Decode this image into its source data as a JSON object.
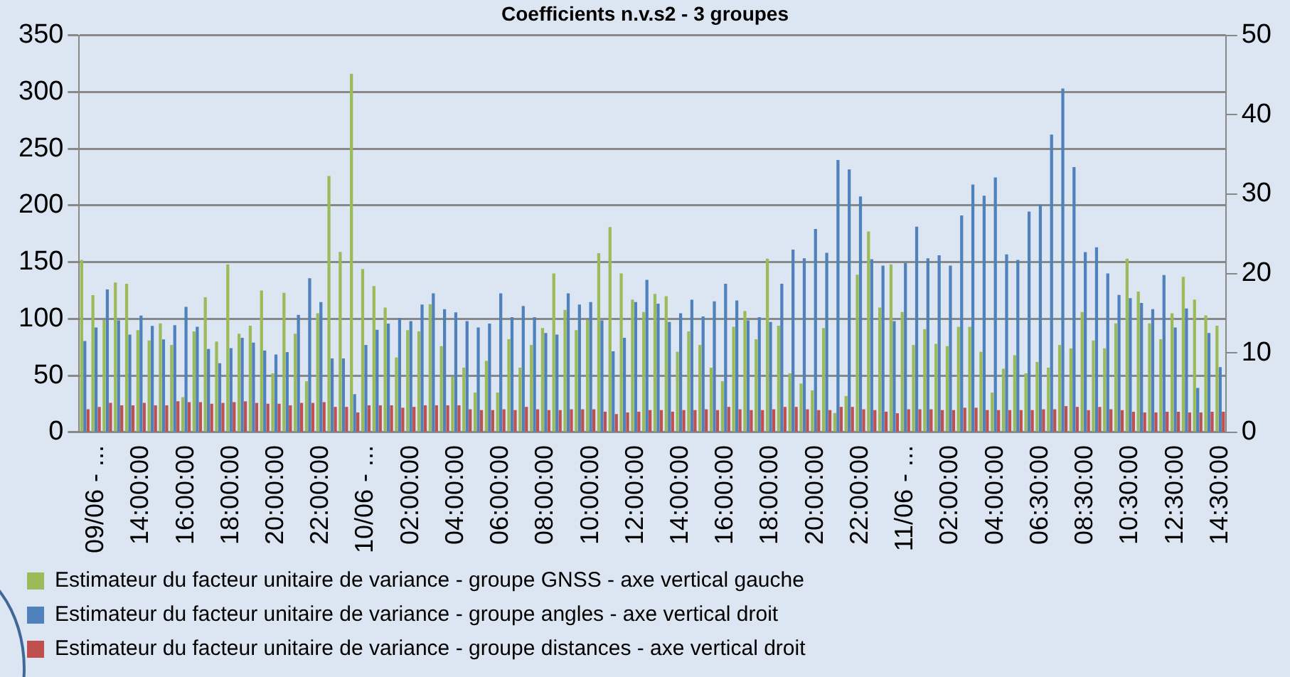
{
  "chart_data": {
    "type": "bar",
    "title": "Coefficients n.v.s2 - 3 groupes",
    "categories": [
      null,
      "09/06 - ...",
      null,
      null,
      null,
      "14:00:00",
      null,
      null,
      null,
      "16:00:00",
      null,
      null,
      null,
      "18:00:00",
      null,
      null,
      null,
      "20:00:00",
      null,
      null,
      null,
      "22:00:00",
      null,
      null,
      null,
      "10/06 - ...",
      null,
      null,
      null,
      "02:00:00",
      null,
      null,
      null,
      "04:00:00",
      null,
      null,
      null,
      "06:00:00",
      null,
      null,
      null,
      "08:00:00",
      null,
      null,
      null,
      "10:00:00",
      null,
      null,
      null,
      "12:00:00",
      null,
      null,
      null,
      "14:00:00",
      null,
      null,
      null,
      "16:00:00",
      null,
      null,
      null,
      "18:00:00",
      null,
      null,
      null,
      "20:00:00",
      null,
      null,
      null,
      "22:00:00",
      null,
      null,
      null,
      "11/06 - ...",
      null,
      null,
      null,
      "02:00:00",
      null,
      null,
      null,
      "04:00:00",
      null,
      null,
      null,
      "06:30:00",
      null,
      null,
      null,
      "08:30:00",
      null,
      null,
      null,
      "10:30:00",
      null,
      null,
      null,
      "12:30:00",
      null,
      null,
      null,
      "14:30:00"
    ],
    "series": [
      {
        "name": "Estimateur du facteur unitaire de variance - groupe GNSS - axe vertical gauche",
        "color": "#9bbb59",
        "values": [
          152,
          121,
          99,
          132,
          131,
          90,
          81,
          96,
          77,
          31,
          89,
          119,
          80,
          148,
          87,
          94,
          125,
          52,
          123,
          87,
          45,
          105,
          226,
          159,
          316,
          144,
          129,
          110,
          66,
          90,
          89,
          113,
          76,
          49,
          57,
          35,
          63,
          35,
          82,
          57,
          77,
          92,
          140,
          108,
          90,
          99,
          158,
          181,
          140,
          117,
          106,
          122,
          120,
          71,
          89,
          77,
          57,
          45,
          93,
          107,
          82,
          153,
          94,
          52,
          43,
          37,
          92,
          17,
          32,
          139,
          177,
          110,
          148,
          106,
          77,
          91,
          78,
          76,
          93,
          93,
          71,
          35,
          56,
          68,
          52,
          62,
          57,
          77,
          74,
          106,
          81,
          74,
          96,
          153,
          124,
          96,
          82,
          105,
          137,
          117,
          103,
          94
        ]
      },
      {
        "name": "Estimateur du facteur unitaire de variance - groupe angles - axe vertical droit",
        "color": "#4f81bd",
        "axis": "y2",
        "values": [
          11.5,
          13.2,
          18.0,
          14.1,
          12.3,
          14.7,
          13.4,
          11.7,
          13.5,
          15.8,
          13.3,
          10.5,
          8.7,
          10.6,
          11.9,
          11.3,
          10.3,
          9.8,
          10.1,
          14.8,
          19.4,
          16.4,
          9.3,
          9.3,
          4.8,
          11.0,
          12.9,
          13.7,
          14.4,
          14.0,
          16.1,
          17.5,
          15.5,
          15.1,
          14.0,
          13.2,
          13.7,
          17.5,
          14.5,
          15.9,
          14.5,
          12.5,
          12.3,
          17.5,
          16.1,
          16.4,
          14.1,
          10.2,
          11.9,
          16.4,
          19.2,
          16.2,
          13.9,
          15.0,
          16.7,
          14.6,
          16.5,
          18.7,
          16.6,
          14.1,
          14.5,
          13.9,
          18.7,
          23.0,
          21.9,
          25.6,
          22.6,
          34.3,
          33.1,
          29.7,
          21.8,
          21.0,
          14.0,
          21.3,
          25.9,
          21.9,
          22.3,
          21.0,
          27.3,
          31.2,
          29.8,
          32.1,
          22.4,
          21.7,
          27.8,
          28.7,
          37.5,
          43.3,
          33.4,
          22.7,
          23.3,
          20.0,
          17.3,
          16.9,
          16.3,
          15.5,
          19.8,
          13.2,
          15.6,
          5.6,
          12.5,
          8.2
        ]
      },
      {
        "name": "Estimateur du facteur unitaire de variance - groupe distances - axe vertical droit",
        "color": "#c0504d",
        "axis": "y2",
        "values": [
          2.9,
          3.2,
          3.7,
          3.4,
          3.4,
          3.7,
          3.4,
          3.4,
          3.9,
          3.8,
          3.8,
          3.6,
          3.7,
          3.8,
          3.9,
          3.7,
          3.6,
          3.6,
          3.4,
          3.7,
          3.7,
          3.8,
          3.2,
          3.2,
          2.5,
          3.4,
          3.4,
          3.4,
          3.1,
          3.2,
          3.4,
          3.4,
          3.4,
          3.4,
          2.9,
          2.8,
          2.8,
          2.9,
          2.8,
          3.2,
          2.9,
          2.8,
          2.8,
          2.9,
          2.9,
          2.9,
          2.6,
          2.3,
          2.5,
          2.6,
          2.8,
          2.8,
          2.6,
          2.8,
          2.8,
          2.9,
          2.8,
          3.2,
          2.9,
          2.8,
          2.8,
          2.9,
          3.2,
          3.2,
          2.9,
          2.8,
          2.8,
          3.2,
          3.2,
          2.9,
          2.8,
          2.6,
          2.4,
          2.9,
          2.9,
          2.9,
          2.8,
          2.8,
          3.1,
          3.1,
          2.8,
          2.8,
          2.8,
          2.8,
          2.8,
          2.9,
          2.9,
          3.3,
          3.2,
          2.8,
          3.2,
          2.9,
          2.8,
          2.6,
          2.5,
          2.5,
          2.6,
          2.6,
          2.5,
          2.5,
          2.6,
          2.6
        ]
      }
    ],
    "ylim": [
      0,
      350
    ],
    "yticks": [
      0,
      50,
      100,
      150,
      200,
      250,
      300,
      350
    ],
    "y2lim": [
      0,
      50
    ],
    "y2ticks": [
      0,
      10,
      20,
      30,
      40,
      50
    ],
    "grid": "y",
    "legend": "bottom"
  }
}
